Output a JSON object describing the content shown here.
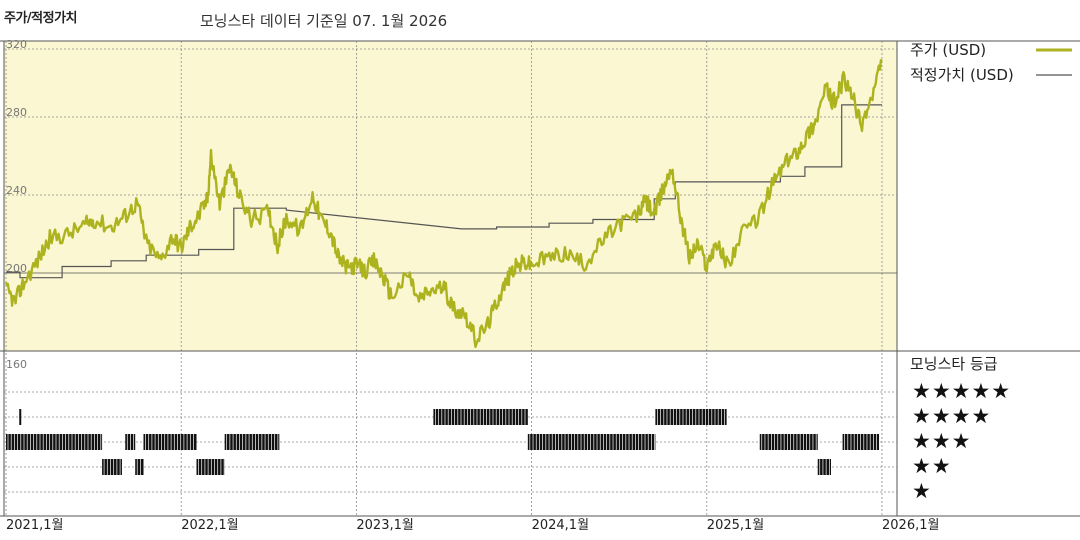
{
  "header": {
    "title": "주가/적정가치",
    "subtitle": "모닝스타 데이터 기준일 07. 1월 2026"
  },
  "legend": {
    "price_label": "주가 (USD)",
    "fair_value_label": "적정가치 (USD)",
    "rating_title": "모닝스타 등급"
  },
  "rating_stars": [
    "★★★★★",
    "★★★★",
    "★★★",
    "★★",
    "★"
  ],
  "colors": {
    "price": "#adb31f",
    "fair_value": "#555555",
    "plot_bg": "#faf7d2",
    "rating_bar": "#111111"
  },
  "chart_data": {
    "type": "line",
    "title": "주가/적정가치",
    "subtitle": "모닝스타 데이터 기준일 07. 1월 2026",
    "x_tick_labels": [
      "2021,1월",
      "2022,1월",
      "2023,1월",
      "2024,1월",
      "2025,1월",
      "2026,1월"
    ],
    "y_tick_labels": [
      "320",
      "280",
      "240",
      "200",
      "160"
    ],
    "ylim": [
      160,
      320
    ],
    "series": [
      {
        "name": "주가 (USD)",
        "points": [
          [
            2021.0,
            197
          ],
          [
            2021.05,
            190
          ],
          [
            2021.1,
            200
          ],
          [
            2021.18,
            212
          ],
          [
            2021.25,
            224
          ],
          [
            2021.35,
            226
          ],
          [
            2021.45,
            231
          ],
          [
            2021.5,
            234
          ],
          [
            2021.6,
            230
          ],
          [
            2021.68,
            236
          ],
          [
            2021.75,
            243
          ],
          [
            2021.8,
            222
          ],
          [
            2021.88,
            212
          ],
          [
            2021.95,
            225
          ],
          [
            2022.0,
            219
          ],
          [
            2022.05,
            230
          ],
          [
            2022.1,
            236
          ],
          [
            2022.15,
            245
          ],
          [
            2022.17,
            268
          ],
          [
            2022.22,
            242
          ],
          [
            2022.28,
            262
          ],
          [
            2022.33,
            247
          ],
          [
            2022.4,
            234
          ],
          [
            2022.5,
            238
          ],
          [
            2022.55,
            220
          ],
          [
            2022.6,
            235
          ],
          [
            2022.68,
            228
          ],
          [
            2022.75,
            247
          ],
          [
            2022.8,
            234
          ],
          [
            2022.85,
            228
          ],
          [
            2022.9,
            213
          ],
          [
            2022.95,
            208
          ],
          [
            2023.0,
            210
          ],
          [
            2023.05,
            206
          ],
          [
            2023.1,
            212
          ],
          [
            2023.15,
            204
          ],
          [
            2023.2,
            193
          ],
          [
            2023.3,
            205
          ],
          [
            2023.35,
            191
          ],
          [
            2023.42,
            196
          ],
          [
            2023.5,
            198
          ],
          [
            2023.55,
            187
          ],
          [
            2023.62,
            184
          ],
          [
            2023.68,
            170
          ],
          [
            2023.75,
            178
          ],
          [
            2023.8,
            190
          ],
          [
            2023.85,
            200
          ],
          [
            2023.9,
            208
          ],
          [
            2023.95,
            211
          ],
          [
            2024.0,
            210
          ],
          [
            2024.1,
            214
          ],
          [
            2024.2,
            216
          ],
          [
            2024.3,
            210
          ],
          [
            2024.4,
            222
          ],
          [
            2024.5,
            232
          ],
          [
            2024.6,
            236
          ],
          [
            2024.65,
            244
          ],
          [
            2024.7,
            237
          ],
          [
            2024.75,
            250
          ],
          [
            2024.8,
            262
          ],
          [
            2024.85,
            236
          ],
          [
            2024.9,
            214
          ],
          [
            2024.95,
            221
          ],
          [
            2025.0,
            209
          ],
          [
            2025.05,
            222
          ],
          [
            2025.12,
            210
          ],
          [
            2025.2,
            226
          ],
          [
            2025.3,
            236
          ],
          [
            2025.38,
            254
          ],
          [
            2025.45,
            264
          ],
          [
            2025.52,
            271
          ],
          [
            2025.58,
            280
          ],
          [
            2025.62,
            286
          ],
          [
            2025.68,
            304
          ],
          [
            2025.72,
            296
          ],
          [
            2025.78,
            308
          ],
          [
            2025.83,
            300
          ],
          [
            2025.88,
            284
          ],
          [
            2025.94,
            298
          ],
          [
            2026.0,
            318
          ]
        ]
      },
      {
        "name": "적정가치 (USD)",
        "points": [
          [
            2021.0,
            206
          ],
          [
            2021.08,
            206
          ],
          [
            2021.08,
            203
          ],
          [
            2021.32,
            203
          ],
          [
            2021.32,
            209
          ],
          [
            2021.6,
            209
          ],
          [
            2021.6,
            212
          ],
          [
            2021.8,
            212
          ],
          [
            2021.8,
            215
          ],
          [
            2022.1,
            215
          ],
          [
            2022.1,
            218
          ],
          [
            2022.3,
            218
          ],
          [
            2022.3,
            240
          ],
          [
            2022.6,
            240
          ],
          [
            2022.6,
            239
          ],
          [
            2023.6,
            229
          ],
          [
            2023.8,
            229
          ],
          [
            2023.8,
            230
          ],
          [
            2024.1,
            230
          ],
          [
            2024.1,
            232
          ],
          [
            2024.35,
            232
          ],
          [
            2024.35,
            234
          ],
          [
            2024.7,
            234
          ],
          [
            2024.7,
            245
          ],
          [
            2024.82,
            245
          ],
          [
            2024.82,
            254
          ],
          [
            2025.42,
            254
          ],
          [
            2025.42,
            257
          ],
          [
            2025.56,
            257
          ],
          [
            2025.56,
            262
          ],
          [
            2025.77,
            262
          ],
          [
            2025.77,
            295
          ],
          [
            2026.0,
            295
          ]
        ]
      }
    ],
    "rating_history": {
      "levels": [
        5,
        4,
        3,
        2,
        1
      ],
      "segments": [
        {
          "stars": 4,
          "start": 2021.08,
          "end": 2021.09
        },
        {
          "stars": 3,
          "start": 2021.0,
          "end": 2021.58
        },
        {
          "stars": 2,
          "start": 2021.58,
          "end": 2021.7
        },
        {
          "stars": 3,
          "start": 2021.72,
          "end": 2021.78
        },
        {
          "stars": 2,
          "start": 2021.78,
          "end": 2021.83
        },
        {
          "stars": 3,
          "start": 2021.83,
          "end": 2022.15
        },
        {
          "stars": 2,
          "start": 2022.15,
          "end": 2022.32
        },
        {
          "stars": 3,
          "start": 2022.32,
          "end": 2022.65
        },
        {
          "stars": 4,
          "start": 2023.58,
          "end": 2024.15
        },
        {
          "stars": 3,
          "start": 2024.15,
          "end": 2024.92
        },
        {
          "stars": 4,
          "start": 2024.92,
          "end": 2025.35
        },
        {
          "stars": 3,
          "start": 2025.55,
          "end": 2025.9
        },
        {
          "stars": 2,
          "start": 2025.9,
          "end": 2025.98
        },
        {
          "stars": 3,
          "start": 2026.05,
          "end": 2026.27
        }
      ]
    }
  }
}
